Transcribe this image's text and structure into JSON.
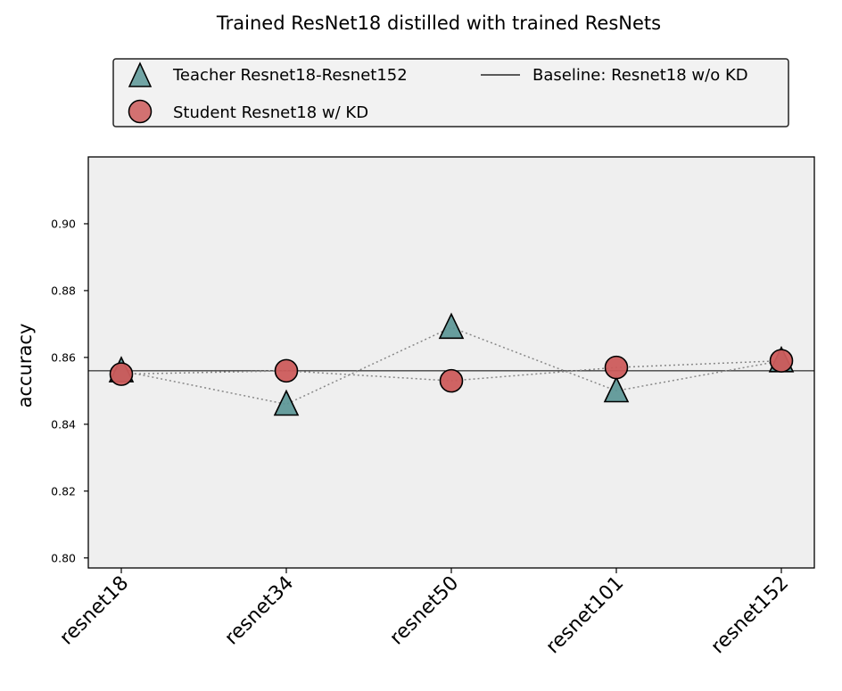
{
  "chart_data": {
    "type": "scatter",
    "title": "Trained ResNet18 distilled with trained ResNets",
    "xlabel": "",
    "ylabel": "accuracy",
    "categories": [
      "resnet18",
      "resnet34",
      "resnet50",
      "resnet101",
      "resnet152"
    ],
    "ylim": [
      0.797,
      0.92
    ],
    "yticks": [
      0.8,
      0.82,
      0.84,
      0.86,
      0.88,
      0.9
    ],
    "ytick_labels": [
      "0.80",
      "0.82",
      "0.84",
      "0.86",
      "0.88",
      "0.90"
    ],
    "grid": false,
    "legend_position": "above plot, two columns",
    "series": [
      {
        "name": "Teacher Resnet18-Resnet152",
        "marker": "triangle",
        "color": "#5b9696",
        "values": [
          0.856,
          0.846,
          0.869,
          0.85,
          0.859
        ]
      },
      {
        "name": "Student Resnet18 w/ KD",
        "marker": "circle",
        "color": "#cc5b5b",
        "values": [
          0.855,
          0.856,
          0.853,
          0.857,
          0.859
        ]
      }
    ],
    "baseline": {
      "name": "Baseline: Resnet18 w/o KD",
      "value": 0.856,
      "color": "#000000"
    },
    "colors": {
      "plot_background": "#efefef",
      "legend_background": "#f2f2f2",
      "connector": "#888888"
    }
  }
}
